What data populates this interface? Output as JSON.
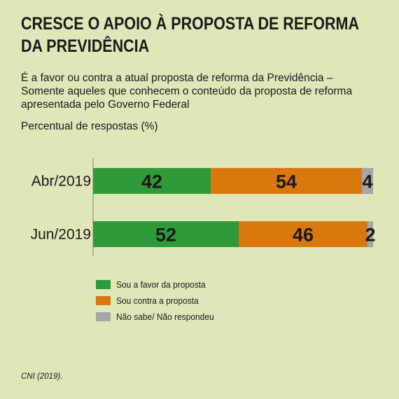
{
  "title": "CRESCE O APOIO À PROPOSTA DE REFORMA DA PREVIDÊNCIA",
  "subtitle": "É a favor ou contra a atual proposta de reforma da Previdência – Somente aqueles que conhecem o conteúdo da proposta de reforma apresentada pelo Governo Federal",
  "unit_label": "Percentual de respostas (%)",
  "source": "CNI (2019).",
  "colors": {
    "background": "#dfe6b8",
    "favor": "#2e9a3a",
    "contra": "#d9780d",
    "nao_sabe": "#a6a6a6"
  },
  "chart_data": {
    "type": "bar",
    "stacked": true,
    "orientation": "horizontal",
    "categories": [
      "Abr/2019",
      "Jun/2019"
    ],
    "series": [
      {
        "name": "Sou a favor da proposta",
        "values": [
          42,
          52
        ],
        "color": "#2e9a3a"
      },
      {
        "name": "Sou contra a proposta",
        "values": [
          54,
          46
        ],
        "color": "#d9780d"
      },
      {
        "name": "Não sabe/ Não respondeu",
        "values": [
          4,
          2
        ],
        "color": "#a6a6a6"
      }
    ],
    "xlim": [
      0,
      100
    ],
    "grid": false,
    "legend_position": "bottom-left"
  }
}
